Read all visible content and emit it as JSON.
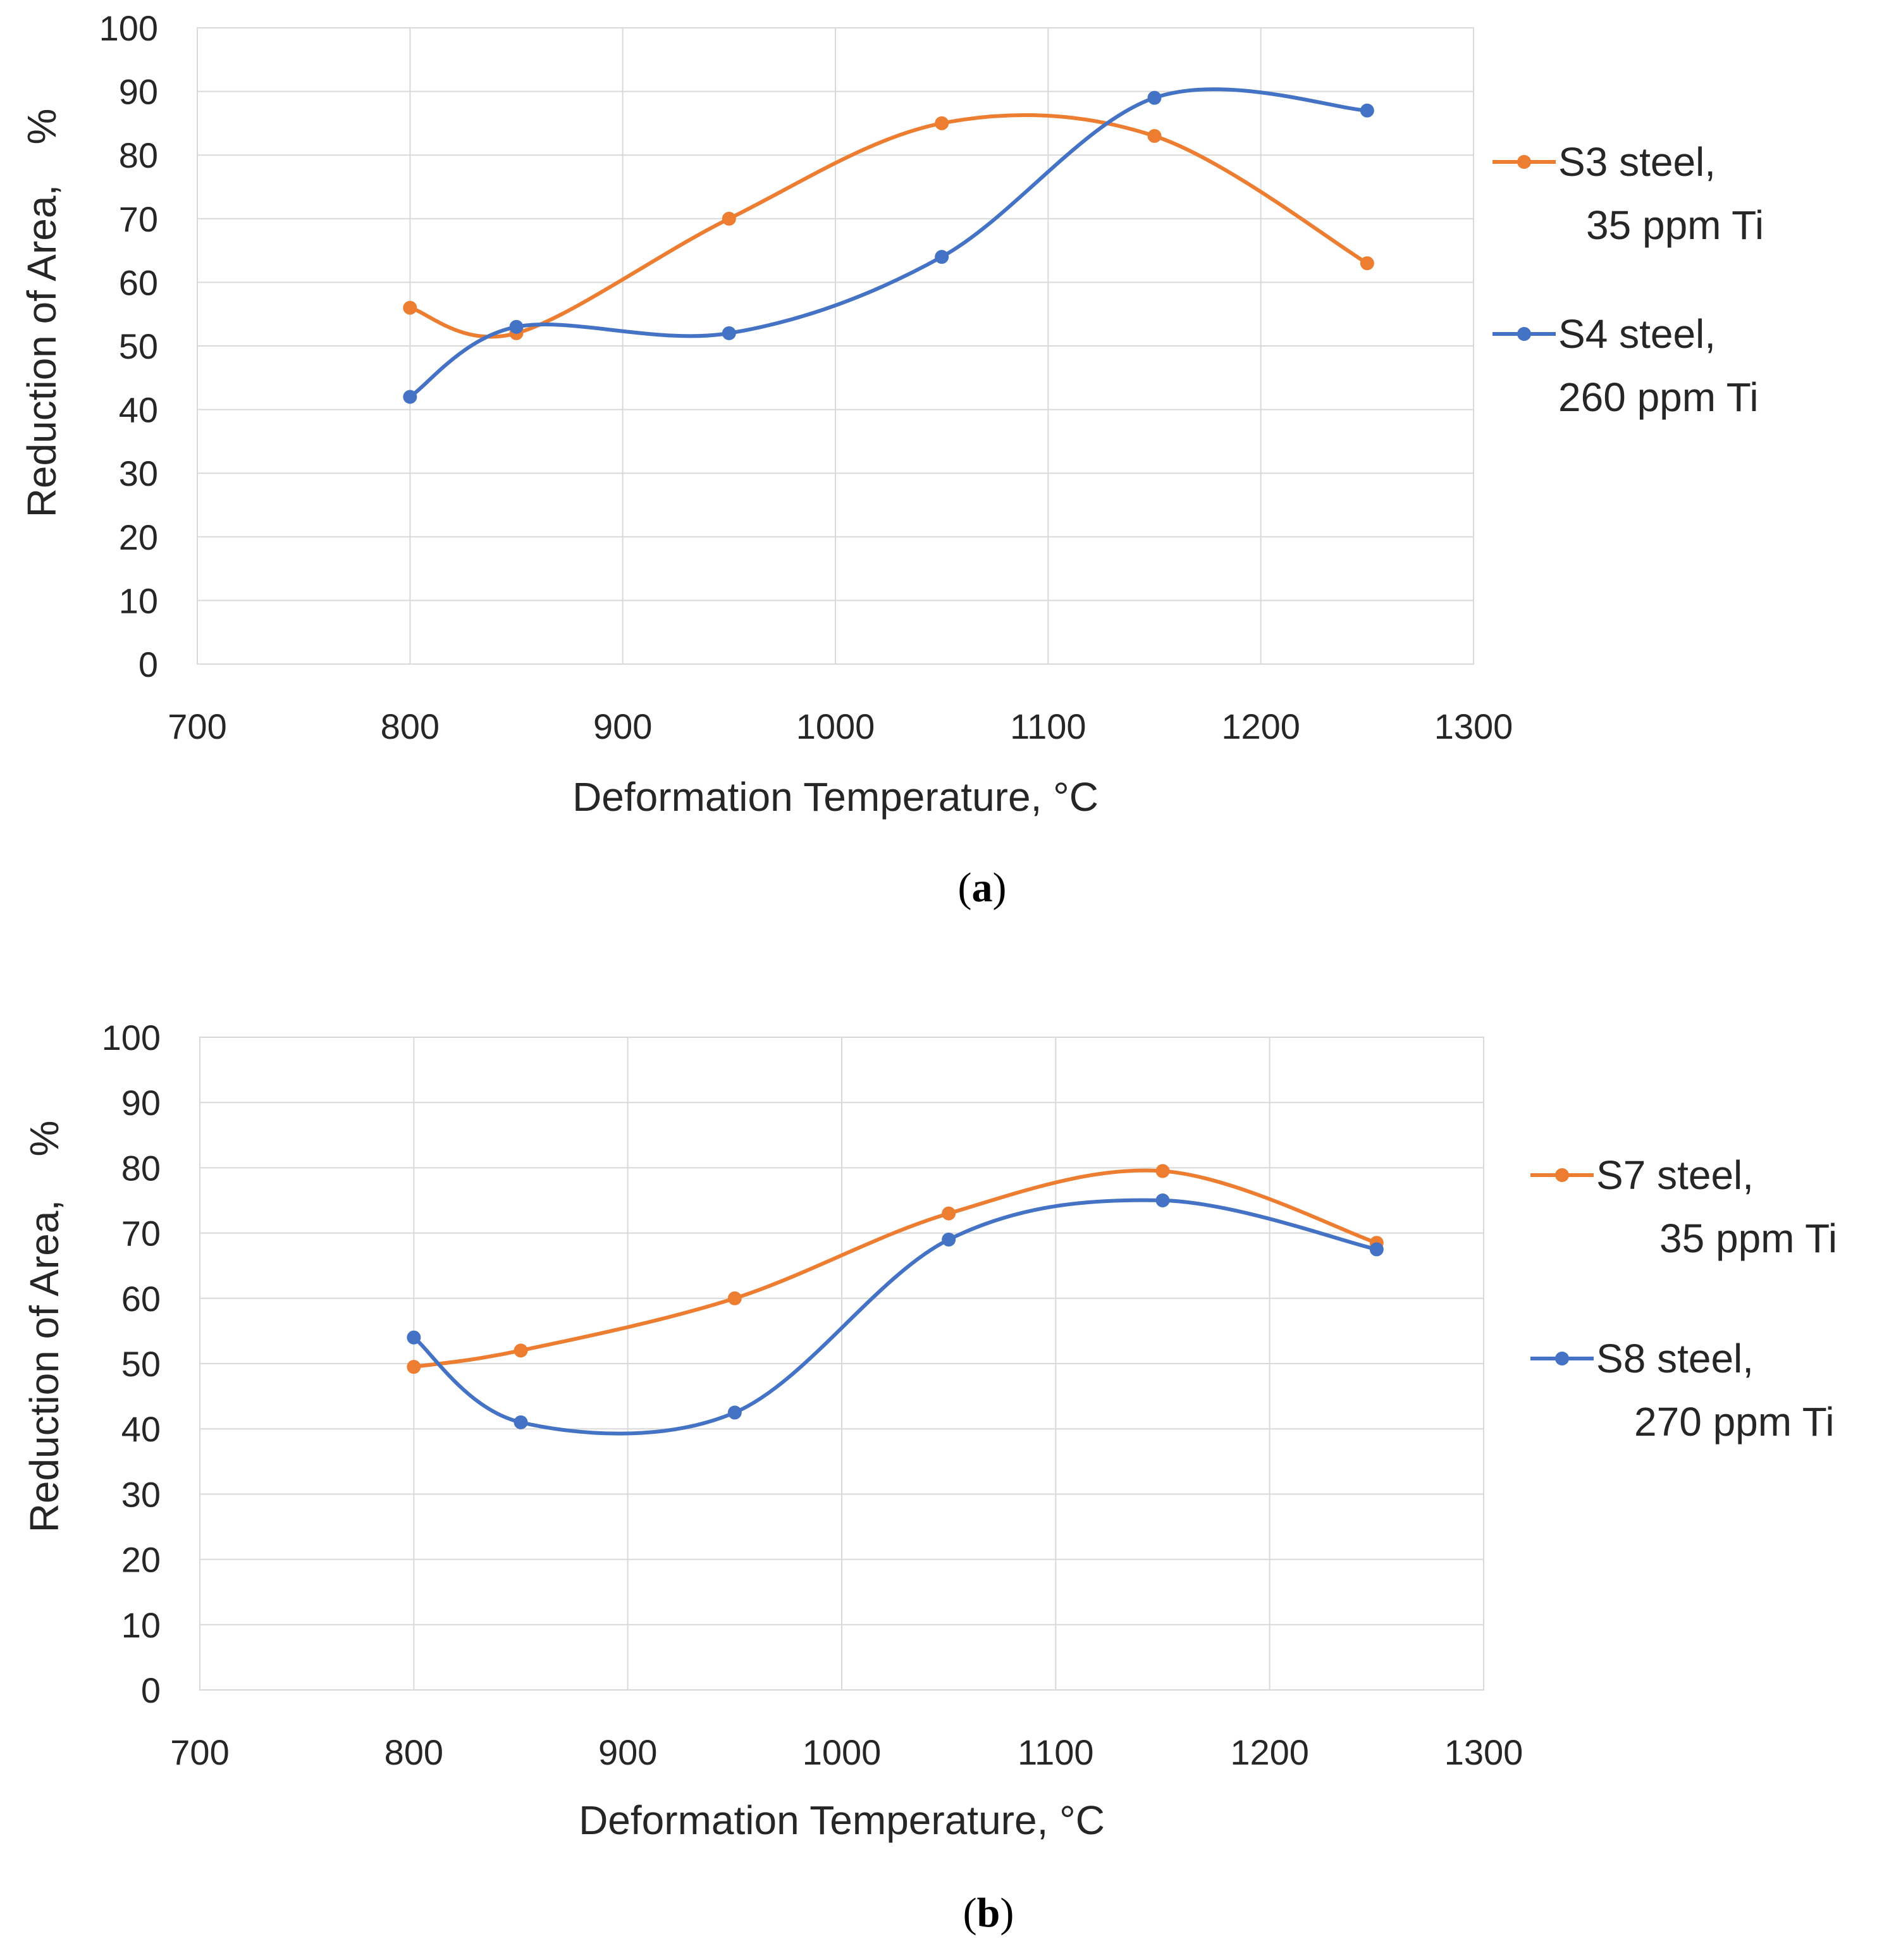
{
  "colors": {
    "orange": "#ED7D31",
    "blue": "#4472C4",
    "grid": "#D9D9D9",
    "text": "#262626"
  },
  "chart_data": [
    {
      "type": "line",
      "smooth": true,
      "caption_letter": "a",
      "xlabel": "Deformation Temperature, °C",
      "ylabel_main": "Reduction of Area,",
      "ylabel_unit": "%",
      "xlim": [
        700,
        1300
      ],
      "ylim": [
        0,
        100
      ],
      "xticks": [
        700,
        800,
        900,
        1000,
        1100,
        1200,
        1300
      ],
      "yticks": [
        0,
        10,
        20,
        30,
        40,
        50,
        60,
        70,
        80,
        90,
        100
      ],
      "grid": true,
      "legend_position": "right",
      "series": [
        {
          "name_line1": "S3 steel,",
          "name_line2": "35 ppm Ti",
          "color": "#ED7D31",
          "x": [
            800,
            850,
            950,
            1050,
            1150,
            1250
          ],
          "y": [
            56,
            52,
            70,
            85,
            83,
            63
          ]
        },
        {
          "name_line1": "S4 steel,",
          "name_line2": "260 ppm Ti",
          "color": "#4472C4",
          "x": [
            800,
            850,
            950,
            1050,
            1150,
            1250
          ],
          "y": [
            42,
            53,
            52,
            64,
            89,
            87
          ]
        }
      ]
    },
    {
      "type": "line",
      "smooth": true,
      "caption_letter": "b",
      "xlabel": "Deformation Temperature, °C",
      "ylabel_main": "Reduction of Area,",
      "ylabel_unit": "%",
      "xlim": [
        700,
        1300
      ],
      "ylim": [
        0,
        100
      ],
      "xticks": [
        700,
        800,
        900,
        1000,
        1100,
        1200,
        1300
      ],
      "yticks": [
        0,
        10,
        20,
        30,
        40,
        50,
        60,
        70,
        80,
        90,
        100
      ],
      "grid": true,
      "legend_position": "right",
      "series": [
        {
          "name_line1": "S7 steel,",
          "name_line2": "35 ppm Ti",
          "color": "#ED7D31",
          "x": [
            800,
            850,
            950,
            1050,
            1150,
            1250
          ],
          "y": [
            49.5,
            52,
            60,
            73,
            79.5,
            68.5
          ]
        },
        {
          "name_line1": "S8 steel,",
          "name_line2": "270 ppm Ti",
          "color": "#4472C4",
          "x": [
            800,
            850,
            950,
            1050,
            1150,
            1250
          ],
          "y": [
            54,
            41,
            42.5,
            69,
            75,
            67.5
          ]
        }
      ]
    }
  ]
}
